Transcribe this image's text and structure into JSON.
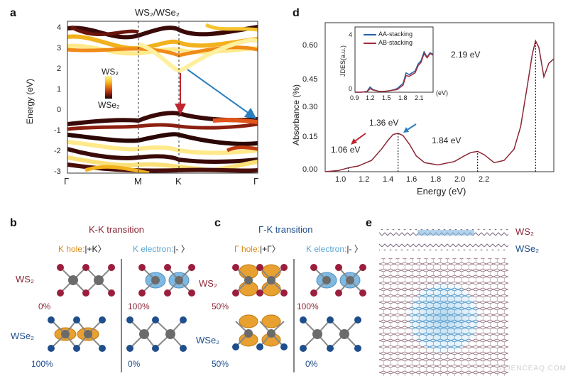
{
  "panels": {
    "a": {
      "label": "a",
      "title": "WS₂/WSe₂",
      "ylabel": "Energy (eV)",
      "yticks": [
        "4",
        "3",
        "2",
        "1",
        "0",
        "-1",
        "-2",
        "-3"
      ],
      "xticks": [
        "Γ",
        "M",
        "K",
        "Γ"
      ],
      "colorbar_top": "WS₂",
      "colorbar_bottom": "WSe₂"
    },
    "d": {
      "label": "d",
      "xlabel": "Energy (eV)",
      "ylabel": "Absorbance (%)",
      "xticks": [
        "1.0",
        "1.2",
        "1.4",
        "1.6",
        "1.8",
        "2.0",
        "2.2"
      ],
      "yticks": [
        "0.00",
        "0.15",
        "0.30",
        "0.45",
        "0.60"
      ],
      "annotations": [
        "1.06 eV",
        "1.36 eV",
        "1.84 eV",
        "2.19 eV"
      ],
      "inset": {
        "ylabel": "JDES(a.u.)",
        "xticks": [
          "0.9",
          "1.2",
          "1.5",
          "1.8",
          "2.1"
        ],
        "xunit": "(eV)",
        "yticks": [
          "0",
          "4"
        ],
        "legend": [
          "AA-stacking",
          "AB-stacking"
        ]
      }
    },
    "b": {
      "label": "b",
      "title": "K-K transition",
      "left_header_a": "K hole:",
      "left_header_b": "|+K〉",
      "right_header_a": "K electron:",
      "right_header_b": "|- 〉",
      "layer_top": "WS₂",
      "layer_bottom": "WSe₂",
      "pct_left_top": "0%",
      "pct_right_top": "100%",
      "pct_left_bottom": "100%",
      "pct_right_bottom": "0%"
    },
    "c": {
      "label": "c",
      "title": "Γ-K transition",
      "left_header_a": "Γ hole:",
      "left_header_b": "|+Γ〉",
      "right_header_a": "K electron:",
      "right_header_b": "|- 〉",
      "layer_top": "WS₂",
      "layer_bottom": "WSe₂",
      "pct_left_top": "50%",
      "pct_right_top": "100%",
      "pct_left_bottom": "50%",
      "pct_right_bottom": "0%"
    },
    "e": {
      "label": "e",
      "layer_top": "WS₂",
      "layer_bottom": "WSe₂"
    }
  },
  "watermark": "SCIENCEAQ.COM",
  "chart_data": [
    {
      "type": "line",
      "title": "WS₂/WSe₂",
      "ylabel": "Energy (eV)",
      "ylim": [
        -3,
        4.4
      ],
      "x": [
        "Γ",
        "M",
        "K",
        "Γ"
      ],
      "markers": {
        "K-K arrow": [
          2.0,
          -0.05
        ],
        "Γ-K arrow": [
          -0.2,
          2.0
        ]
      }
    },
    {
      "type": "line",
      "xlabel": "Energy (eV)",
      "ylabel": "Absorbance (%)",
      "xlim": [
        0.92,
        2.3
      ],
      "ylim": [
        0,
        0.66
      ],
      "x": [
        0.92,
        1.0,
        1.05,
        1.08,
        1.12,
        1.2,
        1.26,
        1.3,
        1.33,
        1.36,
        1.39,
        1.43,
        1.47,
        1.52,
        1.6,
        1.7,
        1.76,
        1.8,
        1.84,
        1.88,
        1.94,
        2.0,
        2.06,
        2.1,
        2.14,
        2.17,
        2.19,
        2.21,
        2.24,
        2.27,
        2.3
      ],
      "values": [
        0.0,
        0.005,
        0.015,
        0.02,
        0.025,
        0.05,
        0.1,
        0.14,
        0.165,
        0.17,
        0.16,
        0.12,
        0.07,
        0.04,
        0.03,
        0.045,
        0.07,
        0.085,
        0.09,
        0.075,
        0.04,
        0.05,
        0.1,
        0.2,
        0.38,
        0.52,
        0.58,
        0.55,
        0.42,
        0.48,
        0.5
      ],
      "annotations": [
        {
          "x": 1.06,
          "label": "1.06 eV"
        },
        {
          "x": 1.36,
          "label": "1.36 eV"
        },
        {
          "x": 1.84,
          "label": "1.84 eV"
        },
        {
          "x": 2.19,
          "label": "2.19 eV"
        }
      ]
    },
    {
      "type": "line",
      "ylabel": "JDES(a.u.)",
      "xlim": [
        0.9,
        2.2
      ],
      "ylim": [
        0,
        5
      ],
      "x": [
        0.9,
        1.0,
        1.1,
        1.15,
        1.2,
        1.3,
        1.4,
        1.5,
        1.6,
        1.7,
        1.75,
        1.8,
        1.9,
        1.95,
        2.0,
        2.05,
        2.1,
        2.15,
        2.2
      ],
      "series": [
        {
          "name": "AA-stacking",
          "values": [
            0,
            0,
            0.1,
            0.6,
            0.3,
            0.1,
            0.1,
            0.2,
            0.4,
            1.0,
            2.2,
            2.0,
            2.4,
            3.2,
            3.6,
            4.6,
            4.0,
            4.5,
            4.3
          ]
        },
        {
          "name": "AB-stacking",
          "values": [
            0,
            0,
            0.05,
            0.4,
            0.25,
            0.1,
            0.1,
            0.2,
            0.3,
            0.8,
            1.9,
            1.8,
            2.2,
            3.0,
            3.4,
            4.4,
            3.9,
            4.4,
            4.2
          ]
        }
      ]
    }
  ]
}
